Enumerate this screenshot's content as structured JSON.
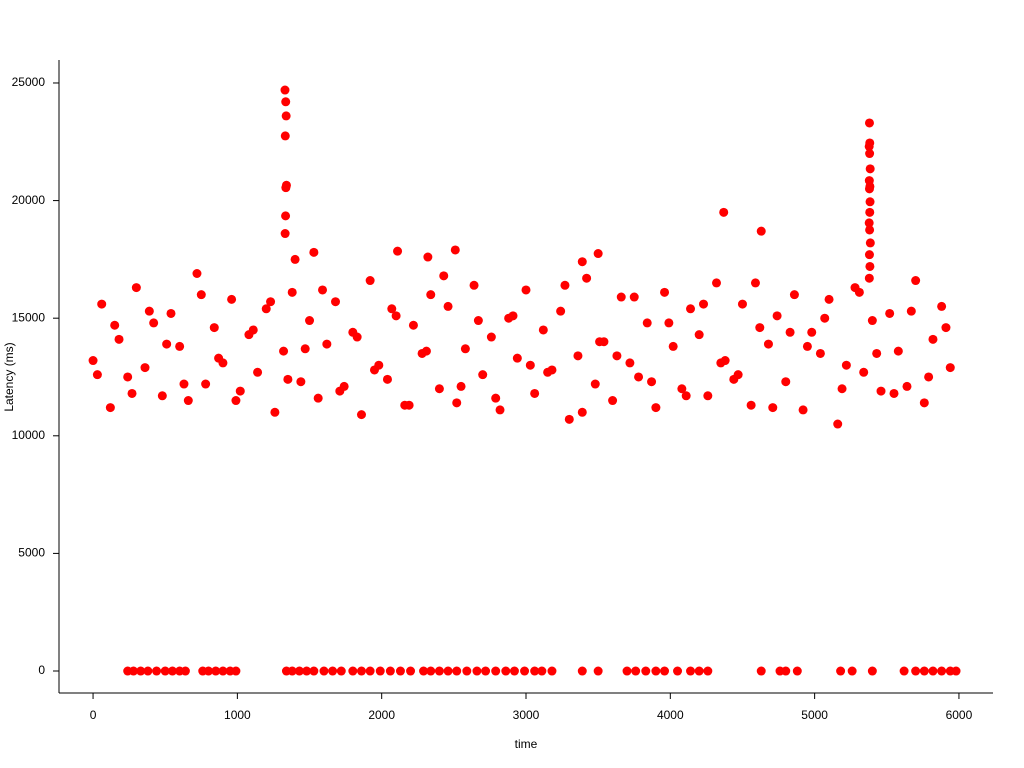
{
  "chart_data": {
    "type": "scatter",
    "xlabel": "time",
    "ylabel": "Latency (ms)",
    "color": "#ff0000",
    "xlim": [
      -236,
      6236
    ],
    "ylim": [
      -935,
      25977
    ],
    "xticks": [
      0,
      1000,
      2000,
      3000,
      4000,
      5000,
      6000
    ],
    "yticks": [
      0,
      5000,
      10000,
      15000,
      20000,
      25000
    ],
    "x": [
      0,
      60,
      120,
      180,
      240,
      300,
      360,
      420,
      480,
      540,
      600,
      660,
      720,
      780,
      840,
      900,
      960,
      1020,
      1080,
      1140,
      1200,
      1260,
      1320,
      1380,
      1440,
      1500,
      1560,
      1620,
      1680,
      1740,
      1800,
      1860,
      1920,
      1980,
      2040,
      2100,
      2160,
      2220,
      2280,
      2340,
      2400,
      2460,
      2520,
      2580,
      2640,
      2700,
      2760,
      2820,
      2880,
      2940,
      3000,
      3060,
      3120,
      3180,
      3240,
      3300,
      3360,
      3420,
      3480,
      3540,
      3600,
      3660,
      3720,
      3780,
      3840,
      3900,
      3960,
      4020,
      4080,
      4140,
      4200,
      4260,
      4320,
      4380,
      4440,
      4500,
      4560,
      4620,
      4680,
      4740,
      4800,
      4860,
      4920,
      4980,
      5040,
      5100,
      5160,
      5220,
      5280,
      5340,
      5400,
      5460,
      5520,
      5580,
      5640,
      5700,
      5760,
      5820,
      5880,
      5940,
      30,
      150,
      270,
      390,
      510,
      630,
      750,
      870,
      990,
      1110,
      1230,
      1350,
      1470,
      1590,
      1710,
      1830,
      1950,
      2070,
      2190,
      2310,
      2430,
      2550,
      2670,
      2790,
      2910,
      3030,
      3150,
      3270,
      3390,
      3510,
      3630,
      3750,
      3870,
      3990,
      4110,
      4230,
      4350,
      4470,
      4590,
      4710,
      4830,
      4950,
      5070,
      5190,
      5310,
      5430,
      5550,
      5670,
      5790,
      5910,
      1330,
      1335,
      1338,
      1332,
      1340,
      1336,
      1334,
      1331,
      5380,
      5382,
      5378,
      5381,
      5385,
      5379,
      5383,
      5380,
      5384,
      5382,
      5378,
      5381,
      5386,
      5380,
      5383,
      5379,
      4370,
      4630,
      1530,
      2110,
      2510,
      3500,
      2320,
      1400,
      3390,
      240,
      280,
      330,
      380,
      440,
      500,
      550,
      600,
      640,
      760,
      800,
      850,
      900,
      950,
      990,
      1340,
      1380,
      1430,
      1480,
      1530,
      1600,
      1660,
      1720,
      1800,
      1860,
      1920,
      1990,
      2060,
      2130,
      2200,
      2290,
      2340,
      2400,
      2460,
      2520,
      2590,
      2660,
      2720,
      2790,
      2860,
      2920,
      2990,
      3060,
      3110,
      3180,
      3390,
      3500,
      3700,
      3760,
      3830,
      3900,
      3960,
      4050,
      4140,
      4200,
      4260,
      4630,
      4760,
      4800,
      4880,
      5180,
      5260,
      5400,
      5620,
      5700,
      5760,
      5820,
      5880,
      5940,
      5980
    ],
    "values": [
      13200,
      15600,
      11200,
      14100,
      12500,
      16300,
      12900,
      14800,
      11700,
      15200,
      13800,
      11500,
      16900,
      12200,
      14600,
      13100,
      15800,
      11900,
      14300,
      12700,
      15400,
      11000,
      13600,
      16100,
      12300,
      14900,
      11600,
      13900,
      15700,
      12100,
      14400,
      10900,
      16600,
      13000,
      12400,
      15100,
      11300,
      14700,
      13500,
      16000,
      12000,
      15500,
      11400,
      13700,
      16400,
      12600,
      14200,
      11100,
      15000,
      13300,
      16200,
      11800,
      14500,
      12800,
      15300,
      10700,
      13400,
      16700,
      12200,
      14000,
      11500,
      15900,
      13100,
      12500,
      14800,
      11200,
      16100,
      13800,
      12000,
      15400,
      14300,
      11700,
      16500,
      13200,
      12400,
      15600,
      11300,
      14600,
      13900,
      15100,
      12300,
      16000,
      11100,
      14400,
      13500,
      15800,
      10500,
      13000,
      16300,
      12700,
      14900,
      11900,
      15200,
      13600,
      12100,
      16600,
      11400,
      14100,
      15500,
      12900,
      12600,
      14700,
      11800,
      15300,
      13900,
      12200,
      16000,
      13300,
      11500,
      14500,
      15700,
      12400,
      13700,
      16200,
      11900,
      14200,
      12800,
      15400,
      11300,
      13600,
      16800,
      12100,
      14900,
      11600,
      15100,
      13000,
      12700,
      16400,
      11000,
      14000,
      13400,
      15900,
      12300,
      14800,
      11700,
      15600,
      13100,
      12600,
      16500,
      11200,
      14400,
      13800,
      15000,
      12000,
      16100,
      13500,
      11800,
      15300,
      12500,
      14600,
      24700,
      24200,
      23600,
      22750,
      20650,
      20550,
      19350,
      18600,
      23300,
      22450,
      22300,
      22000,
      21350,
      20850,
      20600,
      20500,
      19950,
      19500,
      19050,
      18750,
      18200,
      17700,
      17200,
      16700,
      19500,
      18700,
      17800,
      17850,
      17900,
      17750,
      17600,
      17500,
      17400,
      0,
      0,
      0,
      0,
      0,
      0,
      0,
      0,
      0,
      0,
      0,
      0,
      0,
      0,
      0,
      0,
      0,
      0,
      0,
      0,
      0,
      0,
      0,
      0,
      0,
      0,
      0,
      0,
      0,
      0,
      0,
      0,
      0,
      0,
      0,
      0,
      0,
      0,
      0,
      0,
      0,
      0,
      0,
      0,
      0,
      0,
      0,
      0,
      0,
      0,
      0,
      0,
      0,
      0,
      0,
      0,
      0,
      0,
      0,
      0,
      0,
      0,
      0,
      0,
      0,
      0,
      0,
      0,
      0,
      0
    ]
  }
}
